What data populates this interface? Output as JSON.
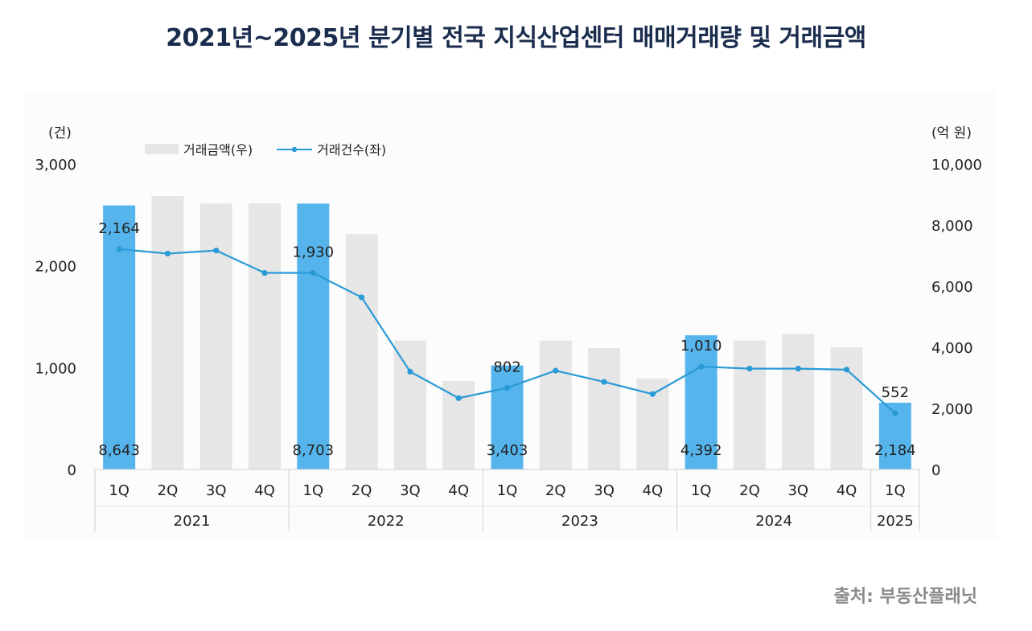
{
  "title": "2021년~2025년 분기별 전국 지식산업센터 매매거래량 및 거래금액",
  "source": "출처: 부동산플래닛",
  "chart_data": {
    "type": "bar+line",
    "left_unit": "(건)",
    "right_unit": "(억 원)",
    "left_ylim": [
      0,
      3000
    ],
    "left_ticks": [
      "0",
      "1,000",
      "2,000",
      "3,000"
    ],
    "left_tick_values": [
      0,
      1000,
      2000,
      3000
    ],
    "right_ylim": [
      0,
      10000
    ],
    "right_ticks": [
      "0",
      "2,000",
      "4,000",
      "6,000",
      "8,000",
      "10,000"
    ],
    "right_tick_values": [
      0,
      2000,
      4000,
      6000,
      8000,
      10000
    ],
    "legend": {
      "bar": "거래금액(우)",
      "line": "거래건수(좌)"
    },
    "quarters": [
      "1Q",
      "2Q",
      "3Q",
      "4Q",
      "1Q",
      "2Q",
      "3Q",
      "4Q",
      "1Q",
      "2Q",
      "3Q",
      "4Q",
      "1Q",
      "2Q",
      "3Q",
      "4Q",
      "1Q"
    ],
    "years": [
      {
        "label": "2021",
        "count": 4
      },
      {
        "label": "2022",
        "count": 4
      },
      {
        "label": "2023",
        "count": 4
      },
      {
        "label": "2024",
        "count": 4
      },
      {
        "label": "2025",
        "count": 1
      }
    ],
    "amount_values": [
      8643,
      8950,
      8700,
      8720,
      8703,
      7700,
      4220,
      2900,
      3403,
      4220,
      3970,
      2980,
      4392,
      4220,
      4440,
      4000,
      2184
    ],
    "count_values": [
      2164,
      2120,
      2150,
      1930,
      1930,
      1690,
      960,
      700,
      802,
      970,
      860,
      740,
      1010,
      990,
      990,
      980,
      552
    ],
    "highlight_indices": [
      0,
      4,
      8,
      12,
      16
    ],
    "amount_labels": [
      "8,643",
      "8,703",
      "3,403",
      "4,392",
      "2,184"
    ],
    "count_labels": [
      "2,164",
      "1,930",
      "802",
      "1,010",
      "552"
    ],
    "colors": {
      "highlight_bar": "#56b4ec",
      "bar": "#e6e6e6",
      "line": "#2a9ad6",
      "text": "#222222",
      "axis": "#d0d0d0"
    }
  }
}
